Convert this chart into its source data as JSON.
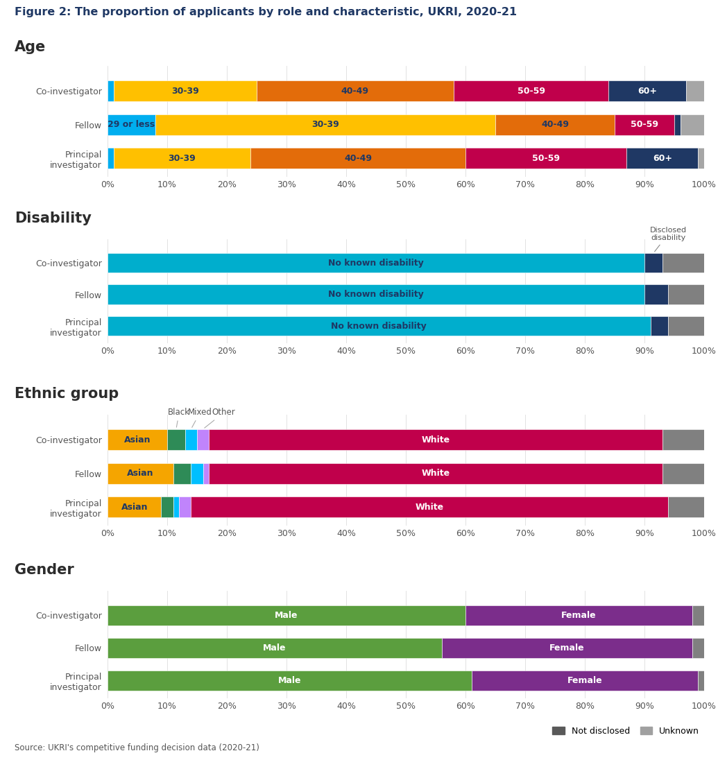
{
  "title": "Figure 2: The proportion of applicants by role and characteristic, UKRI, 2020-21",
  "source": "Source: UKRI's competitive funding decision data (2020-21)",
  "roles": [
    "Co-investigator",
    "Fellow",
    "Principal\ninvestigator"
  ],
  "age": {
    "Co-investigator": {
      "29 or less": 1,
      "30-39": 24,
      "40-49": 33,
      "50-59": 26,
      "60+": 13,
      "Unknown": 3
    },
    "Fellow": {
      "29 or less": 8,
      "30-39": 57,
      "40-49": 20,
      "50-59": 10,
      "60+": 1,
      "Unknown": 4
    },
    "Principal\ninvestigator": {
      "29 or less": 1,
      "30-39": 23,
      "40-49": 36,
      "50-59": 27,
      "60+": 12,
      "Unknown": 1
    }
  },
  "age_keys": [
    "29 or less",
    "30-39",
    "40-49",
    "50-59",
    "60+",
    "Unknown"
  ],
  "age_colors": {
    "29 or less": "#00AEEF",
    "30-39": "#FFC000",
    "40-49": "#E36C0A",
    "50-59": "#C0004B",
    "60+": "#1F3864",
    "Unknown": "#A6A6A6"
  },
  "disability": {
    "Co-investigator": {
      "No known disability": 90,
      "Disclosed disability": 3,
      "Unknown": 7
    },
    "Fellow": {
      "No known disability": 90,
      "Disclosed disability": 4,
      "Unknown": 6
    },
    "Principal\ninvestigator": {
      "No known disability": 91,
      "Disclosed disability": 3,
      "Unknown": 6
    }
  },
  "disability_keys": [
    "No known disability",
    "Disclosed disability",
    "Unknown"
  ],
  "disability_colors": {
    "No known disability": "#00AECD",
    "Disclosed disability": "#1F3864",
    "Unknown": "#808080"
  },
  "ethnic": {
    "Co-investigator": {
      "Asian": 10,
      "Black": 3,
      "Mixed": 2,
      "Other": 2,
      "White": 76,
      "Unknown": 7
    },
    "Fellow": {
      "Asian": 11,
      "Black": 3,
      "Mixed": 2,
      "Other": 1,
      "White": 76,
      "Unknown": 7
    },
    "Principal\ninvestigator": {
      "Asian": 9,
      "Black": 2,
      "Mixed": 1,
      "Other": 2,
      "White": 80,
      "Unknown": 6
    }
  },
  "ethnic_keys": [
    "Asian",
    "Black",
    "Mixed",
    "Other",
    "White",
    "Unknown"
  ],
  "ethnic_colors": {
    "Asian": "#F5A500",
    "Black": "#2E8B57",
    "Mixed": "#00BFFF",
    "Other": "#C084FC",
    "White": "#C0004B",
    "Unknown": "#808080"
  },
  "gender": {
    "Co-investigator": {
      "Male": 60,
      "Female": 38,
      "Unknown": 2
    },
    "Fellow": {
      "Male": 56,
      "Female": 42,
      "Unknown": 2
    },
    "Principal\ninvestigator": {
      "Male": 61,
      "Female": 38,
      "Unknown": 1
    }
  },
  "gender_keys": [
    "Male",
    "Female",
    "Unknown"
  ],
  "gender_colors": {
    "Male": "#5B9E3E",
    "Female": "#7B2D8B",
    "Unknown": "#808080"
  },
  "background_color": "#FFFFFF",
  "title_color": "#1F3864",
  "section_title_color": "#2C2C2C",
  "label_color": "#555555",
  "bar_text_dark": "#1F3864",
  "bar_text_white": "#FFFFFF"
}
